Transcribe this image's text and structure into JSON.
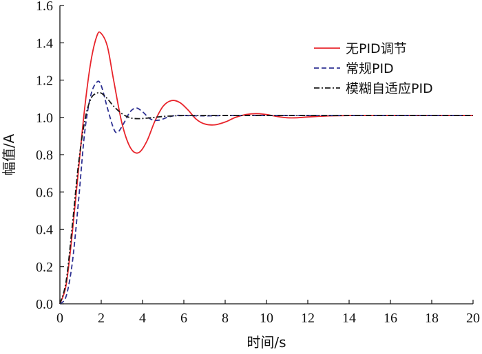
{
  "chart_data": {
    "type": "line",
    "xlabel": "时间/s",
    "ylabel": "幅值/A",
    "xlim": [
      0,
      20
    ],
    "ylim": [
      0,
      1.6
    ],
    "xticks": [
      0,
      2,
      4,
      6,
      8,
      10,
      12,
      14,
      16,
      18,
      20
    ],
    "yticks": [
      0.0,
      0.2,
      0.4,
      0.6,
      0.8,
      1.0,
      1.2,
      1.4,
      1.6
    ],
    "ytick_labels": [
      "0.0",
      "0.2",
      "0.4",
      "0.6",
      "0.8",
      "1.0",
      "1.2",
      "1.4",
      "1.6"
    ],
    "grid": false,
    "legend_position": "top-right",
    "series": [
      {
        "name": "无PID调节",
        "color": "#e8242b",
        "dash": "solid",
        "x": [
          0,
          0.3,
          0.6,
          0.9,
          1.2,
          1.5,
          1.8,
          2.0,
          2.3,
          2.6,
          3.0,
          3.4,
          3.8,
          4.2,
          4.6,
          5.0,
          5.4,
          5.8,
          6.2,
          6.6,
          7.0,
          7.5,
          8.0,
          8.5,
          9.0,
          9.5,
          10.0,
          10.5,
          11.0,
          11.5,
          12.0,
          13.0,
          14.0,
          16.0,
          18.0,
          20.0
        ],
        "y": [
          0,
          0.1,
          0.38,
          0.72,
          1.05,
          1.3,
          1.44,
          1.45,
          1.38,
          1.2,
          0.97,
          0.84,
          0.81,
          0.87,
          0.98,
          1.06,
          1.09,
          1.08,
          1.04,
          0.99,
          0.965,
          0.96,
          0.975,
          1.0,
          1.015,
          1.02,
          1.015,
          1.005,
          0.998,
          0.998,
          1.002,
          1.008,
          1.01,
          1.01,
          1.01,
          1.01
        ]
      },
      {
        "name": "常规PID",
        "color": "#2e3192",
        "dash": "dashed",
        "x": [
          0,
          0.3,
          0.6,
          0.9,
          1.2,
          1.5,
          1.8,
          2.0,
          2.3,
          2.6,
          2.8,
          3.1,
          3.4,
          3.7,
          4.0,
          4.4,
          4.8,
          5.2,
          5.6,
          6.0,
          7.0,
          8.0,
          9.0,
          10.0,
          12.0,
          14.0,
          16.0,
          18.0,
          20.0
        ],
        "y": [
          0,
          0.04,
          0.22,
          0.55,
          0.92,
          1.12,
          1.19,
          1.17,
          1.05,
          0.94,
          0.92,
          0.97,
          1.03,
          1.05,
          1.03,
          0.99,
          0.985,
          1.0,
          1.01,
          1.01,
          1.008,
          1.01,
          1.01,
          1.01,
          1.01,
          1.01,
          1.01,
          1.01,
          1.01
        ]
      },
      {
        "name": "模糊自适应PID",
        "color": "#1a1a1a",
        "dash": "dashdot",
        "x": [
          0,
          0.3,
          0.6,
          0.9,
          1.2,
          1.5,
          1.8,
          2.0,
          2.3,
          2.6,
          3.0,
          3.4,
          3.8,
          4.2,
          4.6,
          5.0,
          5.5,
          6.0,
          7.0,
          8.0,
          10.0,
          12.0,
          14.0,
          16.0,
          18.0,
          20.0
        ],
        "y": [
          0,
          0.12,
          0.42,
          0.75,
          0.98,
          1.1,
          1.13,
          1.13,
          1.1,
          1.06,
          1.02,
          0.998,
          0.993,
          0.996,
          1.0,
          1.005,
          1.008,
          1.01,
          1.01,
          1.01,
          1.01,
          1.01,
          1.01,
          1.01,
          1.01,
          1.01
        ]
      }
    ]
  }
}
